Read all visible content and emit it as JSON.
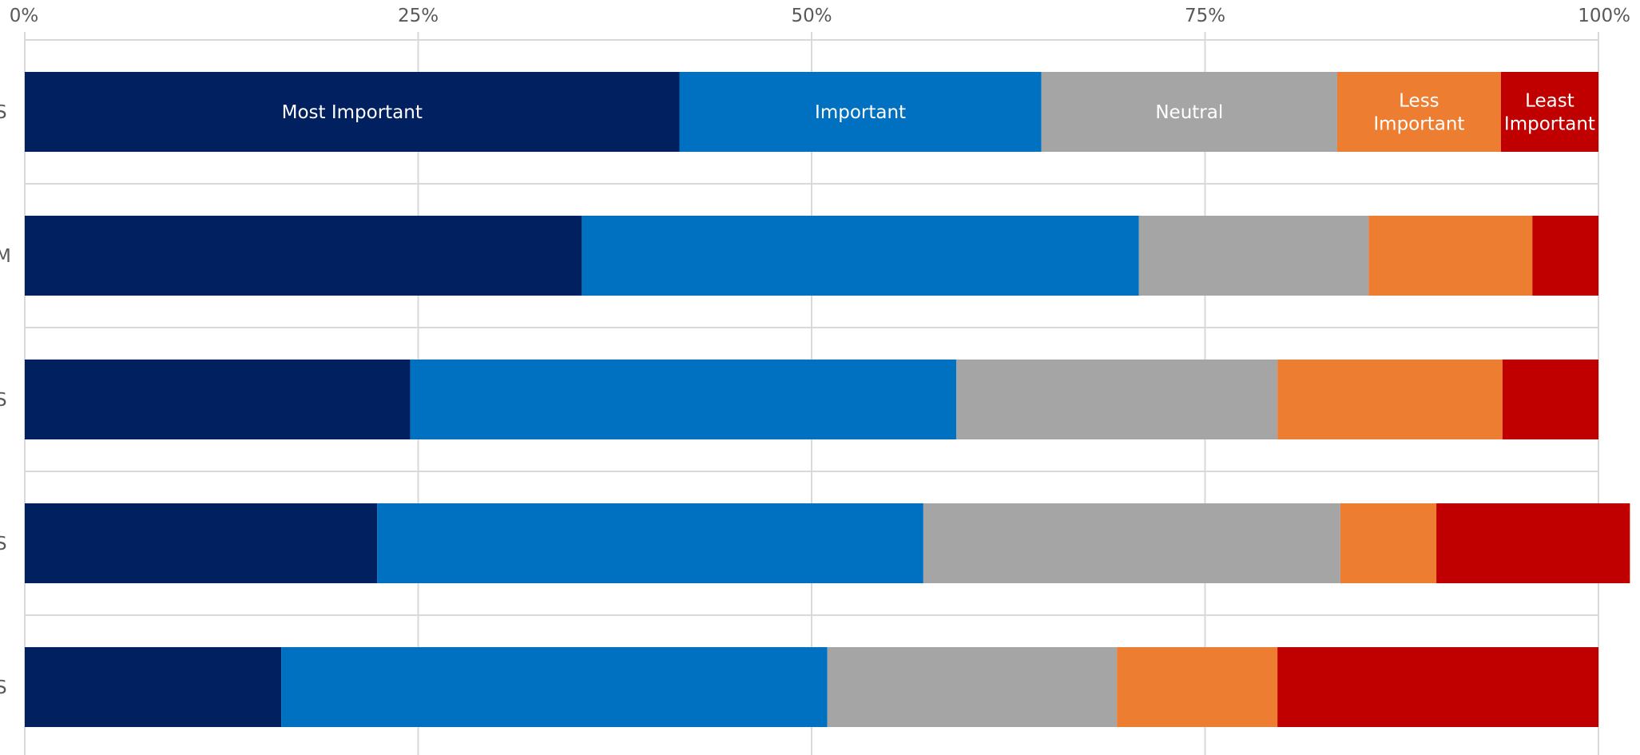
{
  "chart_data": {
    "type": "bar",
    "orientation": "horizontal",
    "stacked": "100%",
    "categories": [
      "S",
      "M",
      "S",
      "S",
      "S"
    ],
    "x_ticks": [
      "0%",
      "25%",
      "50%",
      "75%",
      "100%"
    ],
    "xlim": [
      0,
      100
    ],
    "grid": true,
    "series": [
      {
        "name": "Most Important",
        "color": "#002060",
        "values": [
          41.6,
          35.4,
          24.5,
          22.4,
          16.3
        ]
      },
      {
        "name": "Important",
        "color": "#0070C0",
        "values": [
          23.0,
          35.4,
          34.7,
          34.7,
          34.7
        ]
      },
      {
        "name": "Neutral",
        "color": "#A5A5A5",
        "values": [
          18.8,
          14.6,
          20.4,
          26.5,
          18.4
        ]
      },
      {
        "name": "Less Important",
        "color": "#ED7D31",
        "values": [
          10.4,
          10.4,
          14.3,
          6.1,
          10.2
        ]
      },
      {
        "name": "Least Important",
        "color": "#C00000",
        "values": [
          6.2,
          4.2,
          6.1,
          12.3,
          20.4
        ]
      }
    ],
    "segment_labels": [
      [
        "Most Important"
      ],
      [
        "Important"
      ],
      [
        "Neutral"
      ],
      [
        "Less",
        "Important"
      ],
      [
        "Least",
        "Important"
      ]
    ],
    "segment_labels_row": 0
  }
}
